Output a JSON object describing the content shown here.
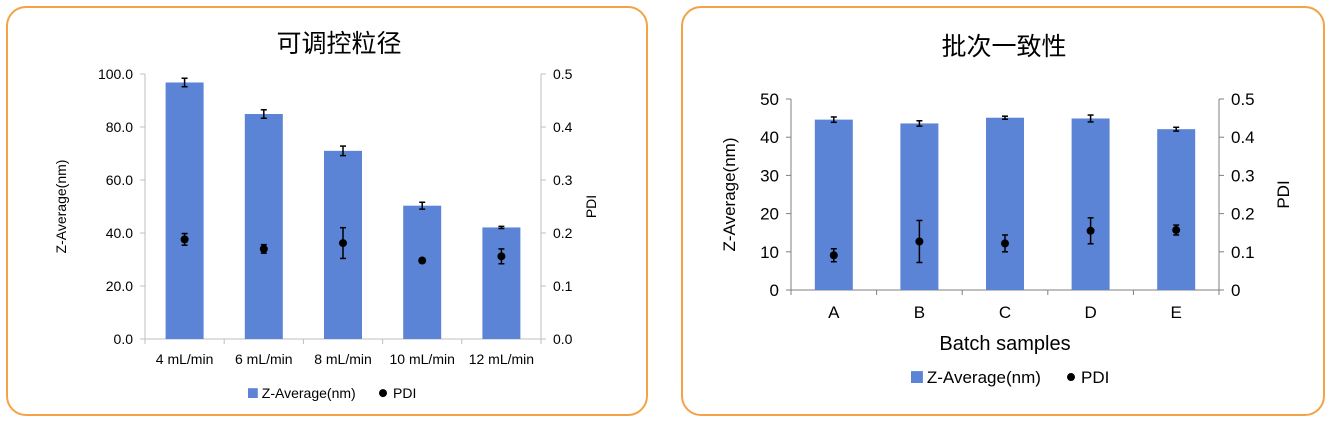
{
  "colors": {
    "bar": "#5b84d6",
    "marker": "#000000",
    "border": "#f4a245",
    "axis": "#bfbfbf"
  },
  "chart_data": [
    {
      "type": "bar",
      "title": "可调控粒径",
      "categories": [
        "4 mL/min",
        "6 mL/min",
        "8 mL/min",
        "10 mL/min",
        "12 mL/min"
      ],
      "xlabel": "",
      "ylabel": "Z-Average(nm)",
      "y2label": "PDI",
      "ylim": [
        0,
        100
      ],
      "y2lim": [
        0,
        0.5
      ],
      "yticks": [
        "0.0",
        "20.0",
        "40.0",
        "60.0",
        "80.0",
        "100.0"
      ],
      "y2ticks": [
        "0.0",
        "0.1",
        "0.2",
        "0.3",
        "0.4",
        "0.5"
      ],
      "legend": [
        "Z-Average(nm)",
        "PDI"
      ],
      "legend_position": "bottom",
      "series": [
        {
          "name": "Z-Average(nm)",
          "type": "bar",
          "values": [
            96.8,
            84.9,
            71.0,
            50.3,
            42.1
          ],
          "errors": [
            1.6,
            1.6,
            1.8,
            1.3,
            0.4
          ]
        },
        {
          "name": "PDI",
          "type": "scatter",
          "axis": "secondary",
          "values": [
            0.188,
            0.17,
            0.181,
            0.148,
            0.156
          ],
          "errors": [
            0.011,
            0.008,
            0.029,
            0.004,
            0.014
          ]
        }
      ]
    },
    {
      "type": "bar",
      "title": "批次一致性",
      "categories": [
        "A",
        "B",
        "C",
        "D",
        "E"
      ],
      "xlabel": "Batch samples",
      "ylabel": "Z-Average(nm)",
      "y2label": "PDI",
      "ylim": [
        0,
        50
      ],
      "y2lim": [
        0,
        0.5
      ],
      "yticks": [
        "0",
        "10",
        "20",
        "30",
        "40",
        "50"
      ],
      "y2ticks": [
        "0",
        "0.1",
        "0.2",
        "0.3",
        "0.4",
        "0.5"
      ],
      "legend": [
        "Z-Average(nm)",
        "PDI"
      ],
      "legend_position": "bottom",
      "series": [
        {
          "name": "Z-Average(nm)",
          "type": "bar",
          "values": [
            44.6,
            43.6,
            45.1,
            44.9,
            42.1
          ],
          "errors": [
            0.7,
            0.7,
            0.4,
            0.9,
            0.5
          ]
        },
        {
          "name": "PDI",
          "type": "scatter",
          "axis": "secondary",
          "values": [
            0.091,
            0.127,
            0.122,
            0.155,
            0.157
          ],
          "errors": [
            0.017,
            0.055,
            0.022,
            0.034,
            0.013
          ]
        }
      ]
    }
  ]
}
